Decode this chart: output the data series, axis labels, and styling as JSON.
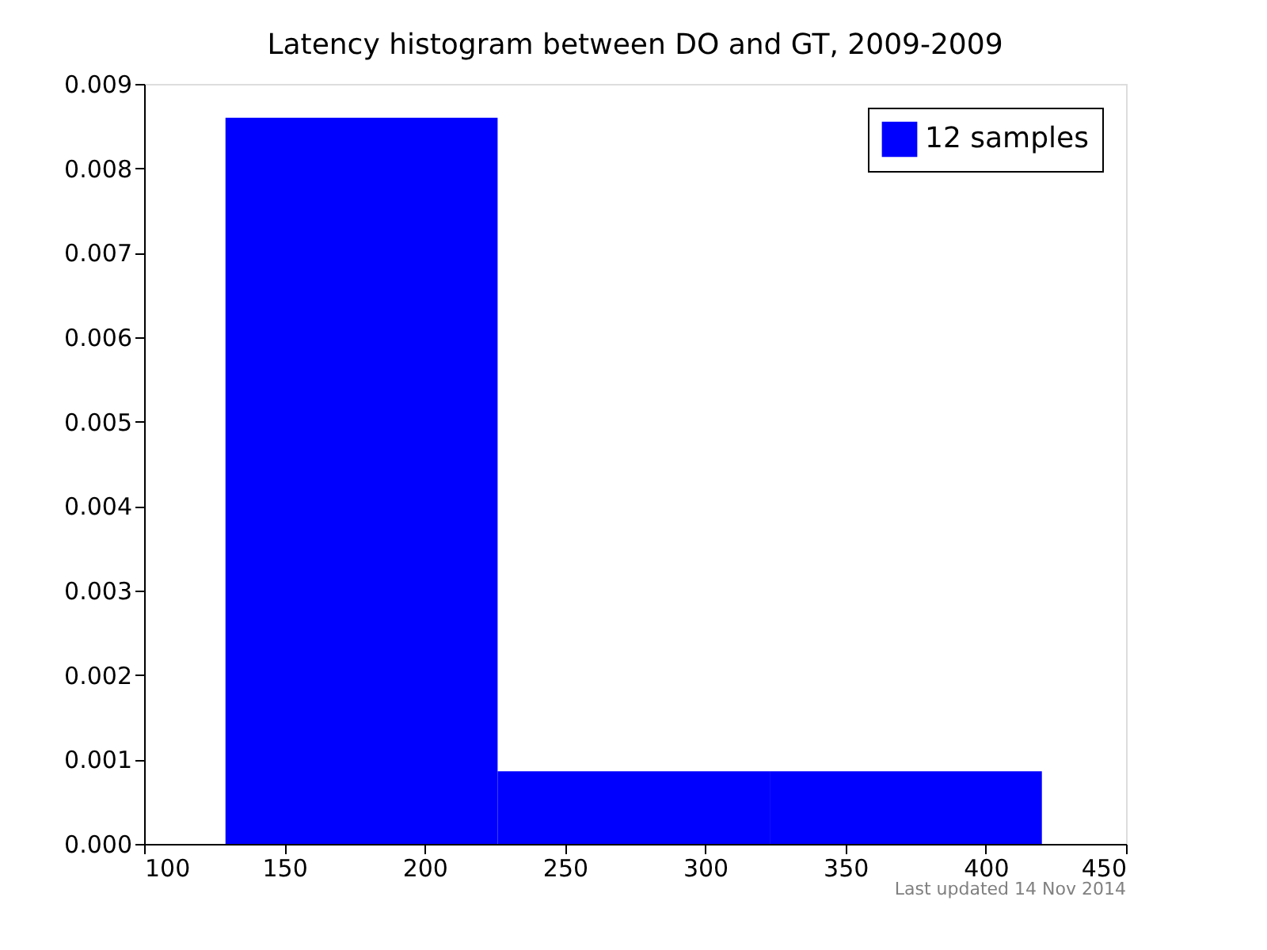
{
  "chart_data": {
    "type": "histogram",
    "title": "Latency histogram between DO and GT, 2009-2009",
    "bins": [
      129,
      226,
      323,
      420
    ],
    "series": [
      {
        "name": "12 samples",
        "color": "#0000ff",
        "values": [
          0.0086,
          0.00086,
          0.00086
        ]
      }
    ],
    "xlim": [
      100,
      450
    ],
    "xticks": [
      100,
      150,
      200,
      250,
      300,
      350,
      400,
      450
    ],
    "ylim": [
      0,
      0.009
    ],
    "yticks": [
      {
        "value": 0,
        "label": "0.000"
      },
      {
        "value": 0.001,
        "label": "0.001"
      },
      {
        "value": 0.002,
        "label": "0.002"
      },
      {
        "value": 0.003,
        "label": "0.003"
      },
      {
        "value": 0.004,
        "label": "0.004"
      },
      {
        "value": 0.005,
        "label": "0.005"
      },
      {
        "value": 0.006,
        "label": "0.006"
      },
      {
        "value": 0.007,
        "label": "0.007"
      },
      {
        "value": 0.008,
        "label": "0.008"
      },
      {
        "value": 0.009,
        "label": "0.009"
      }
    ],
    "legend": "top right",
    "grid": false,
    "annotations": [
      "Last updated 14 Nov 2014"
    ]
  }
}
